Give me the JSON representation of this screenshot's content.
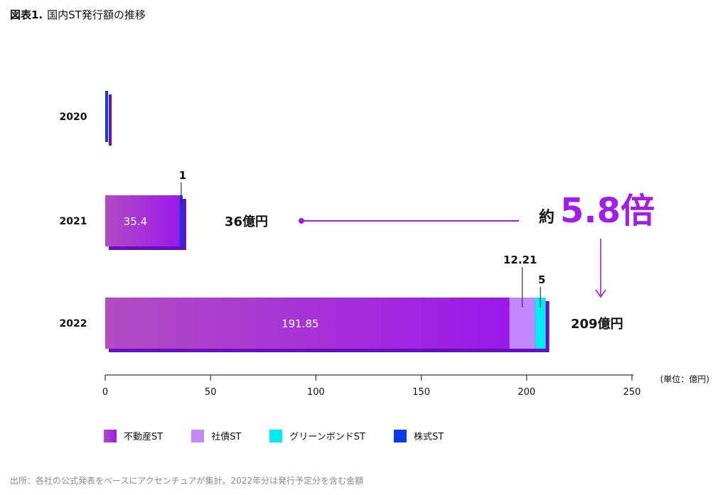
{
  "header": {
    "figure_label": "図表1.",
    "title": "国内ST発行額の推移"
  },
  "footer": {
    "source": "出所：各社の公式発表をベースにアクセンチュアが集計。2022年分は発行予定分を含む金額"
  },
  "annotations": {
    "total_2021": "36億円",
    "total_2022": "209億円",
    "growth_prefix": "約",
    "growth_value": "5.8倍"
  },
  "colors": {
    "real_estate_start": "#b24cc2",
    "real_estate_end": "#9a19ea",
    "corporate_bond": "#c387ff",
    "green_bond": "#00eaf2",
    "stock": "#0b3be6",
    "accent": "#a01ee8",
    "shadow": "#6a0dbf",
    "axis": "#333333"
  },
  "chart_data": {
    "type": "bar",
    "orientation": "horizontal",
    "stacked": true,
    "title": "国内ST発行額の推移",
    "unit_label": "(単位：億円)",
    "categories": [
      "2020",
      "2021",
      "2022"
    ],
    "series": [
      {
        "name": "不動産ST",
        "values": [
          0,
          35.4,
          191.85
        ],
        "labels": [
          "",
          "35.4",
          "191.85"
        ]
      },
      {
        "name": "社債ST",
        "values": [
          0,
          0,
          12.21
        ],
        "labels": [
          "",
          "",
          "12.21"
        ]
      },
      {
        "name": "グリーンボンドST",
        "values": [
          0,
          0,
          5
        ],
        "labels": [
          "",
          "",
          "5"
        ]
      },
      {
        "name": "株式ST",
        "values": [
          1,
          1,
          0
        ],
        "labels": [
          "",
          "1",
          ""
        ]
      }
    ],
    "xlim": [
      0,
      250
    ],
    "xticks": [
      0,
      50,
      100,
      150,
      200,
      250
    ],
    "legend_position": "bottom-left"
  }
}
